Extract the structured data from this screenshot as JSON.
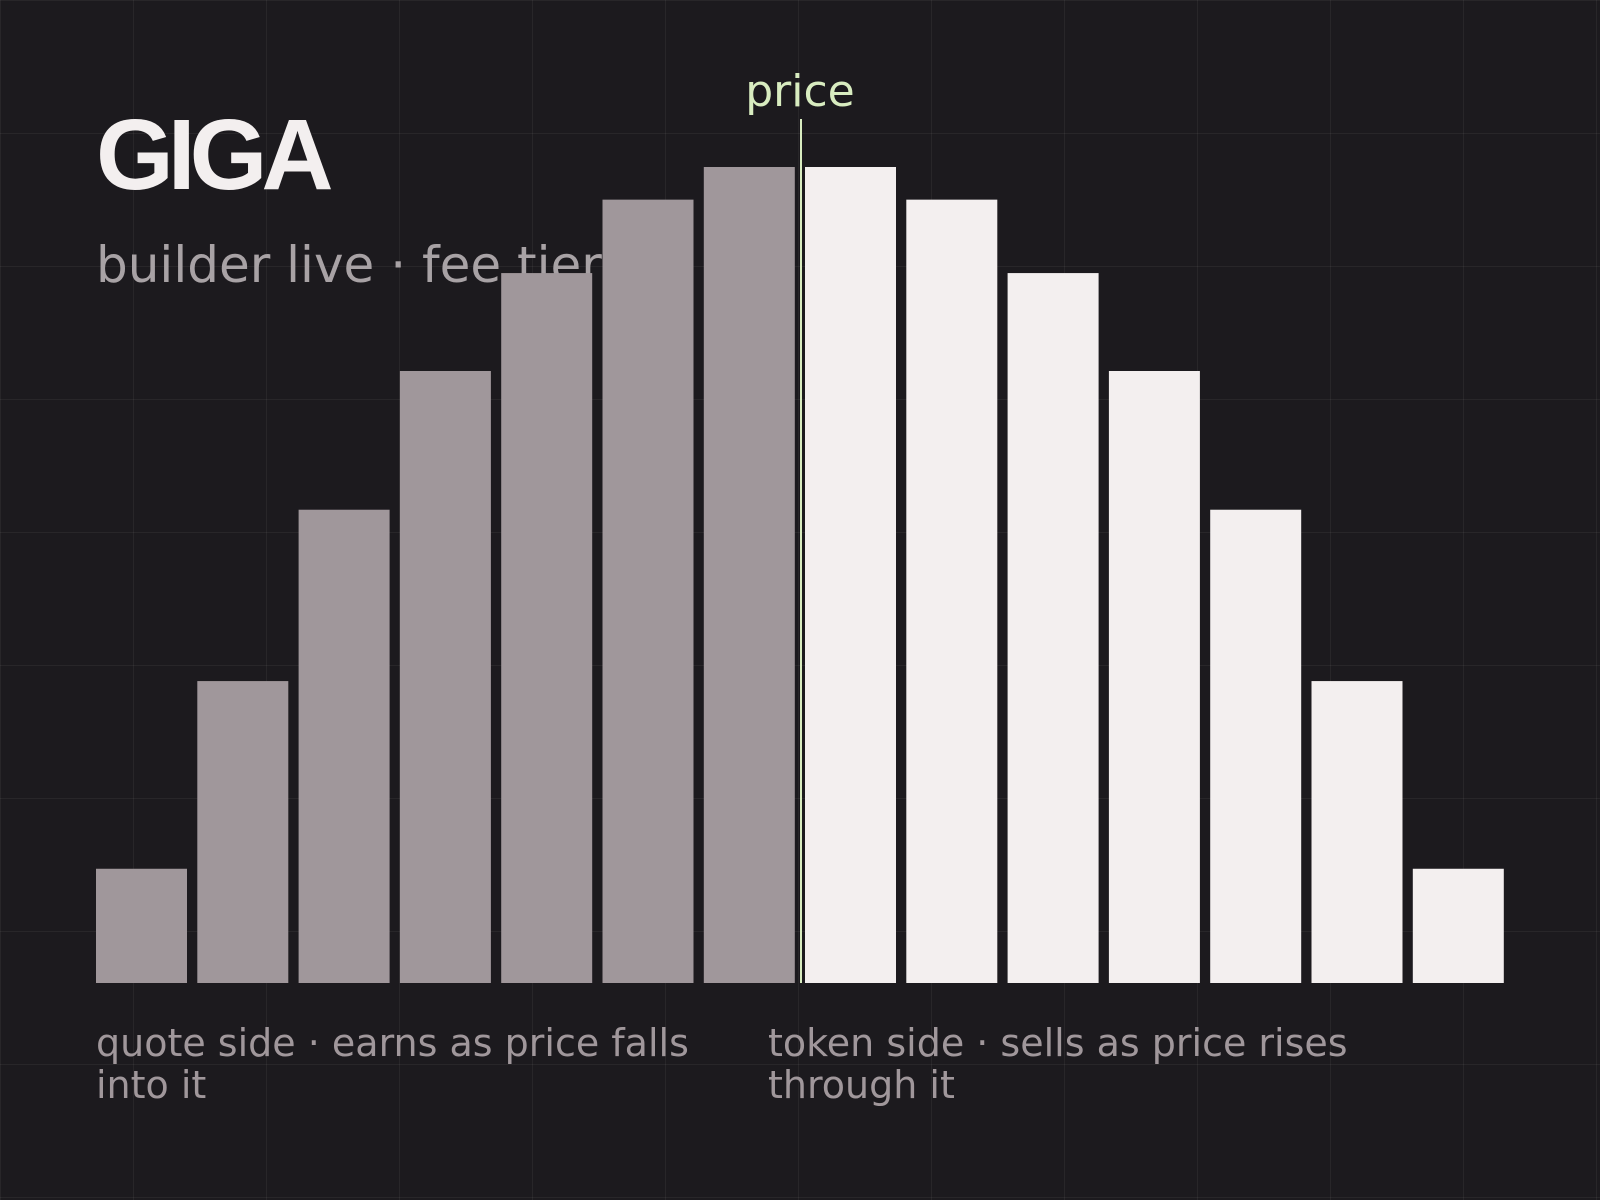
{
  "chart_data": {
    "type": "bar",
    "title": "GIGA",
    "subtitle": "builder live · fee tier",
    "marker_label": "price",
    "series": [
      {
        "name": "quote side · earns as price falls into it",
        "color": "#a0979b",
        "values": [
          14,
          37,
          58,
          75,
          87,
          96,
          100
        ]
      },
      {
        "name": "token side · sells as price rises through it",
        "color": "#f3efef",
        "values": [
          100,
          96,
          87,
          75,
          58,
          37,
          14
        ]
      }
    ],
    "marker_color": "#d8ecc0",
    "ylim": [
      0,
      100
    ]
  }
}
